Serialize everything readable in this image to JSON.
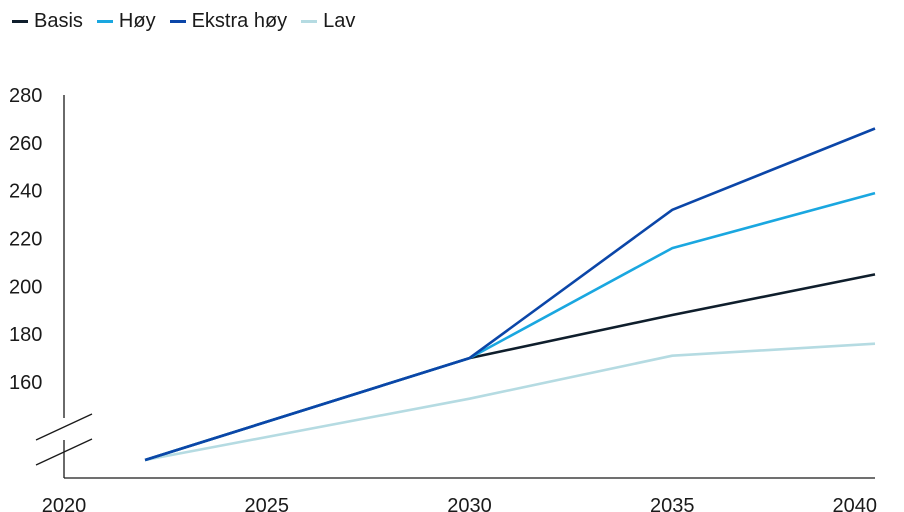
{
  "chart_data": {
    "type": "line",
    "legend_position": "top-left",
    "grid": false,
    "x_ticks": [
      "2020",
      "2025",
      "2030",
      "2035",
      "2040"
    ],
    "y_ticks": [
      "160",
      "180",
      "200",
      "220",
      "240",
      "260",
      "280"
    ],
    "xlim": [
      2020,
      2040
    ],
    "ylim": [
      160,
      280
    ],
    "y_axis_break": true,
    "series": [
      {
        "name": "Basis",
        "color": "#0f1e2c",
        "x": [
          2022,
          2030,
          2035,
          2040
        ],
        "y": [
          null,
          170,
          188,
          205
        ]
      },
      {
        "name": "Høy",
        "color": "#1aa7e0",
        "x": [
          2022,
          2030,
          2035,
          2040
        ],
        "y": [
          null,
          170,
          216,
          239
        ]
      },
      {
        "name": "Ekstra høy",
        "color": "#0b46a8",
        "x": [
          2022,
          2030,
          2035,
          2040
        ],
        "y": [
          null,
          170,
          232,
          266
        ]
      },
      {
        "name": "Lav",
        "color": "#b5dbe2",
        "x": [
          2022,
          2030,
          2035,
          2040
        ],
        "y": [
          null,
          153,
          171,
          176
        ]
      }
    ]
  }
}
